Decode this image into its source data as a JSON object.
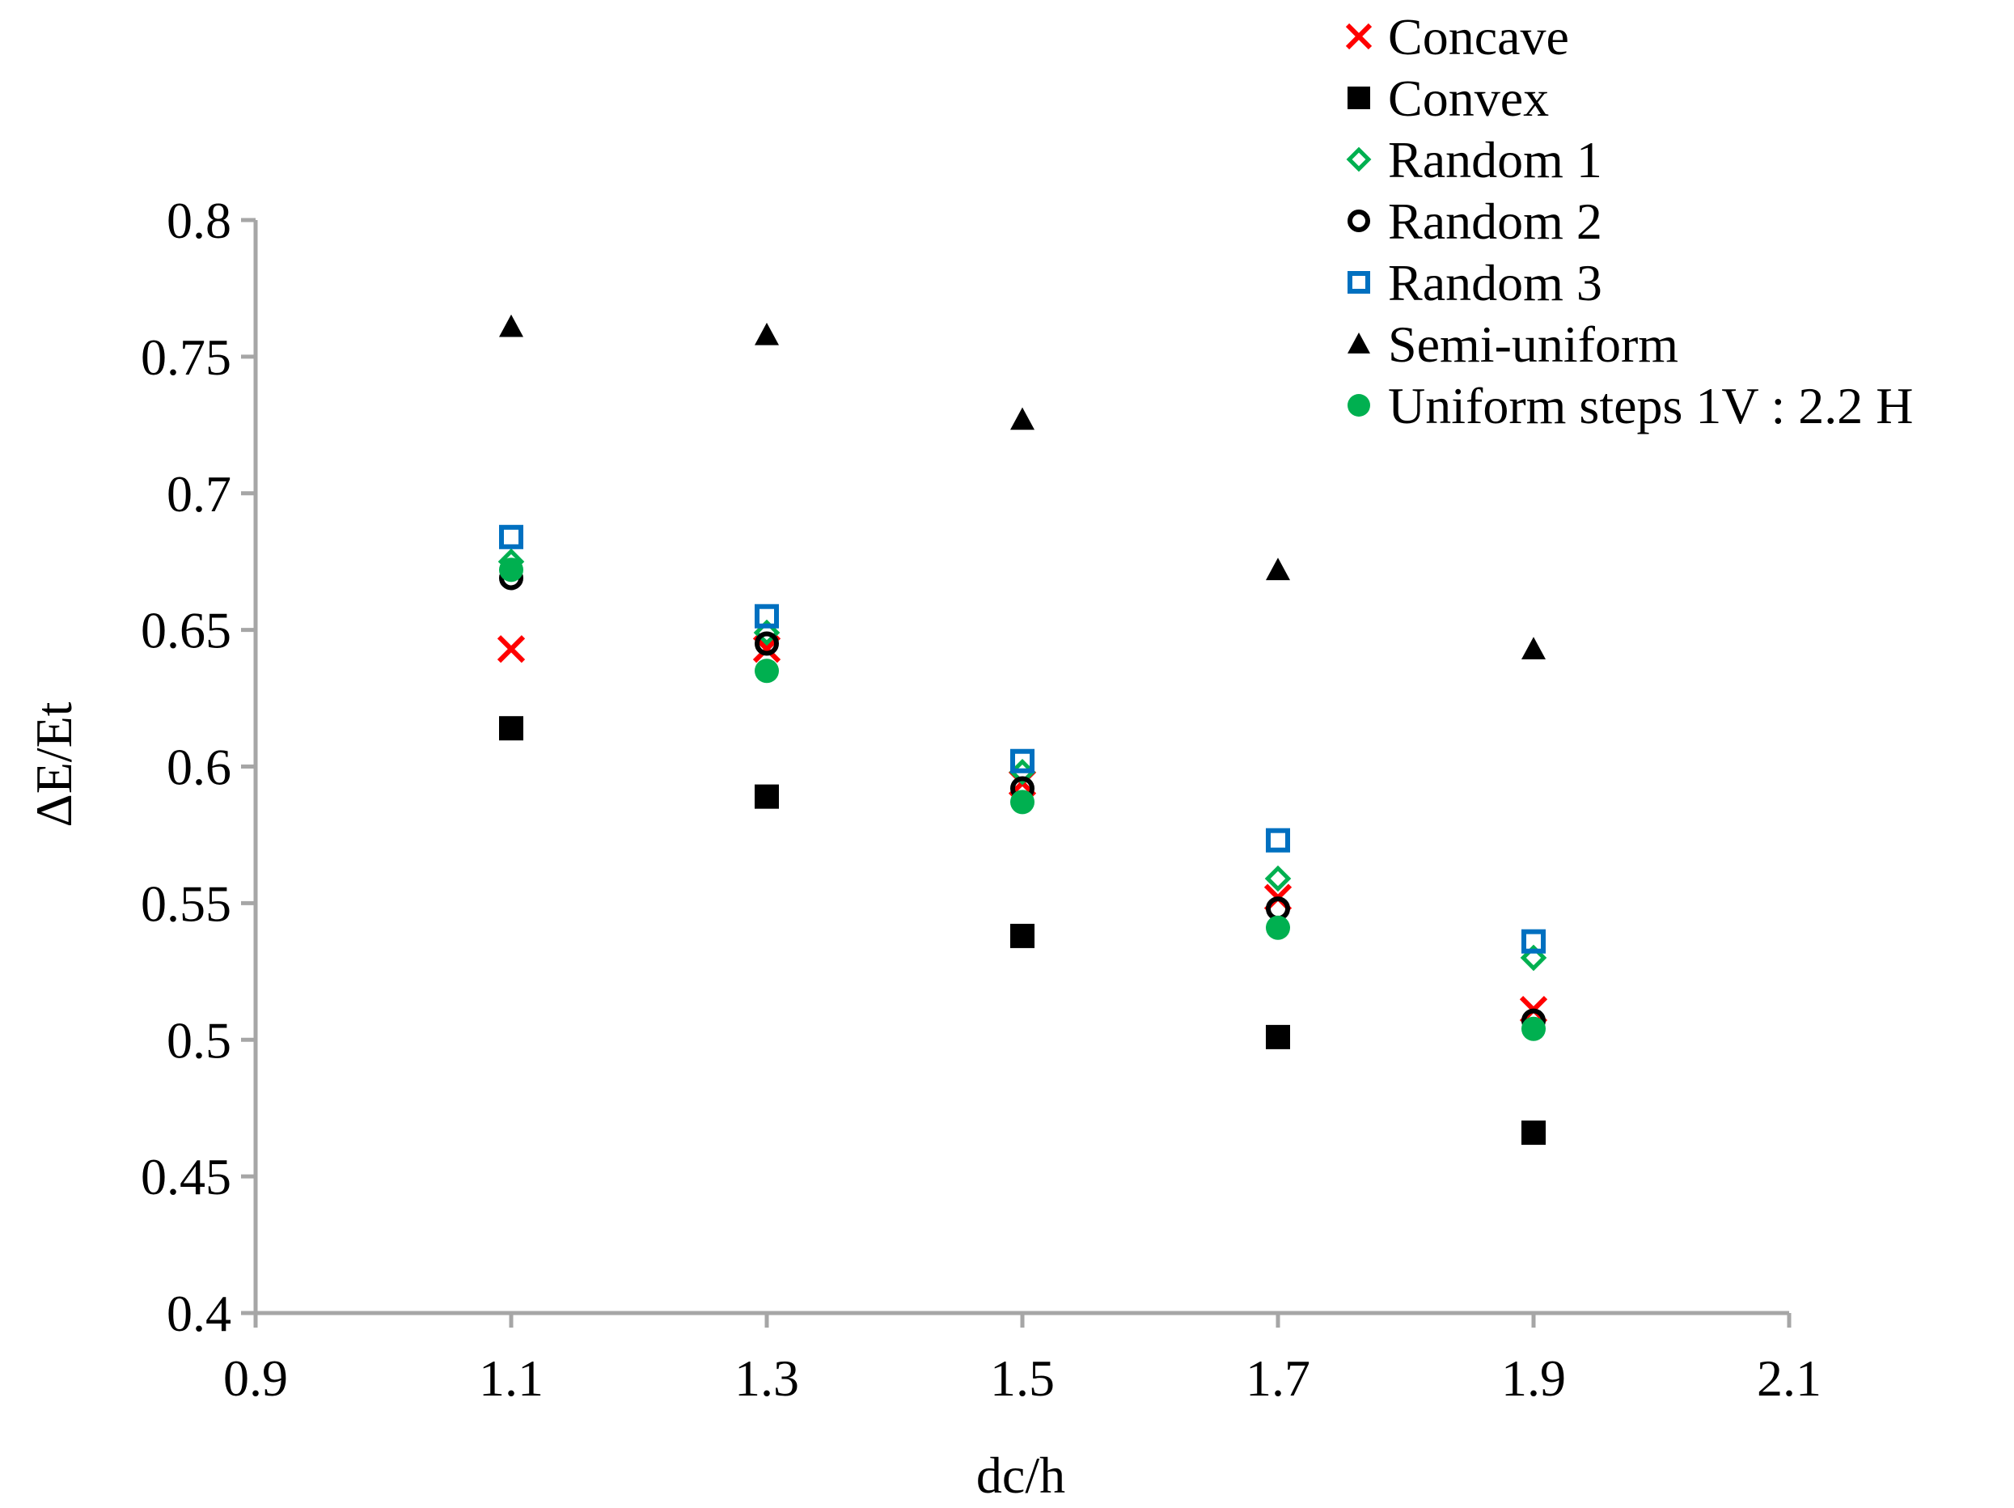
{
  "chart_data": {
    "type": "scatter",
    "title": "",
    "xlabel": "dc/h",
    "ylabel": "ΔE/Et",
    "xlim": [
      0.9,
      2.1
    ],
    "ylim": [
      0.4,
      0.8
    ],
    "xticks": [
      0.9,
      1.1,
      1.3,
      1.5,
      1.7,
      1.9,
      2.1
    ],
    "yticks": [
      0.4,
      0.45,
      0.5,
      0.55,
      0.6,
      0.65,
      0.7,
      0.75,
      0.8
    ],
    "xtick_labels": [
      "0.9",
      "1.1",
      "1.3",
      "1.5",
      "1.7",
      "1.9",
      "2.1"
    ],
    "ytick_labels": [
      "0.4",
      "0.45",
      "0.5",
      "0.55",
      "0.6",
      "0.65",
      "0.7",
      "0.75",
      "0.8"
    ],
    "grid": false,
    "legend_position": "top-right",
    "series": [
      {
        "name": "Concave",
        "marker": "x",
        "color": "#ff0000",
        "x": [
          1.1,
          1.3,
          1.5,
          1.7,
          1.9
        ],
        "y": [
          0.643,
          0.643,
          0.594,
          0.552,
          0.511
        ]
      },
      {
        "name": "Convex",
        "marker": "square-filled",
        "color": "#000000",
        "x": [
          1.1,
          1.3,
          1.5,
          1.7,
          1.9
        ],
        "y": [
          0.614,
          0.589,
          0.538,
          0.501,
          0.466
        ]
      },
      {
        "name": "Random 1",
        "marker": "diamond-open",
        "color": "#00b050",
        "x": [
          1.1,
          1.3,
          1.5,
          1.7,
          1.9
        ],
        "y": [
          0.675,
          0.649,
          0.598,
          0.559,
          0.53
        ]
      },
      {
        "name": "Random 2",
        "marker": "circle-open",
        "color": "#000000",
        "x": [
          1.1,
          1.3,
          1.5,
          1.7,
          1.9
        ],
        "y": [
          0.669,
          0.645,
          0.592,
          0.548,
          0.507
        ]
      },
      {
        "name": "Random 3",
        "marker": "square-open",
        "color": "#0070c0",
        "x": [
          1.1,
          1.3,
          1.5,
          1.7,
          1.9
        ],
        "y": [
          0.684,
          0.655,
          0.602,
          0.573,
          0.536
        ]
      },
      {
        "name": "Semi-uniform",
        "marker": "triangle-filled",
        "color": "#000000",
        "x": [
          1.1,
          1.3,
          1.5,
          1.7,
          1.9
        ],
        "y": [
          0.761,
          0.758,
          0.727,
          0.672,
          0.643
        ]
      },
      {
        "name": "Uniform steps 1V : 2.2 H",
        "marker": "circle-filled",
        "color": "#00b050",
        "x": [
          1.1,
          1.3,
          1.5,
          1.7,
          1.9
        ],
        "y": [
          0.672,
          0.635,
          0.587,
          0.541,
          0.504
        ]
      }
    ]
  }
}
